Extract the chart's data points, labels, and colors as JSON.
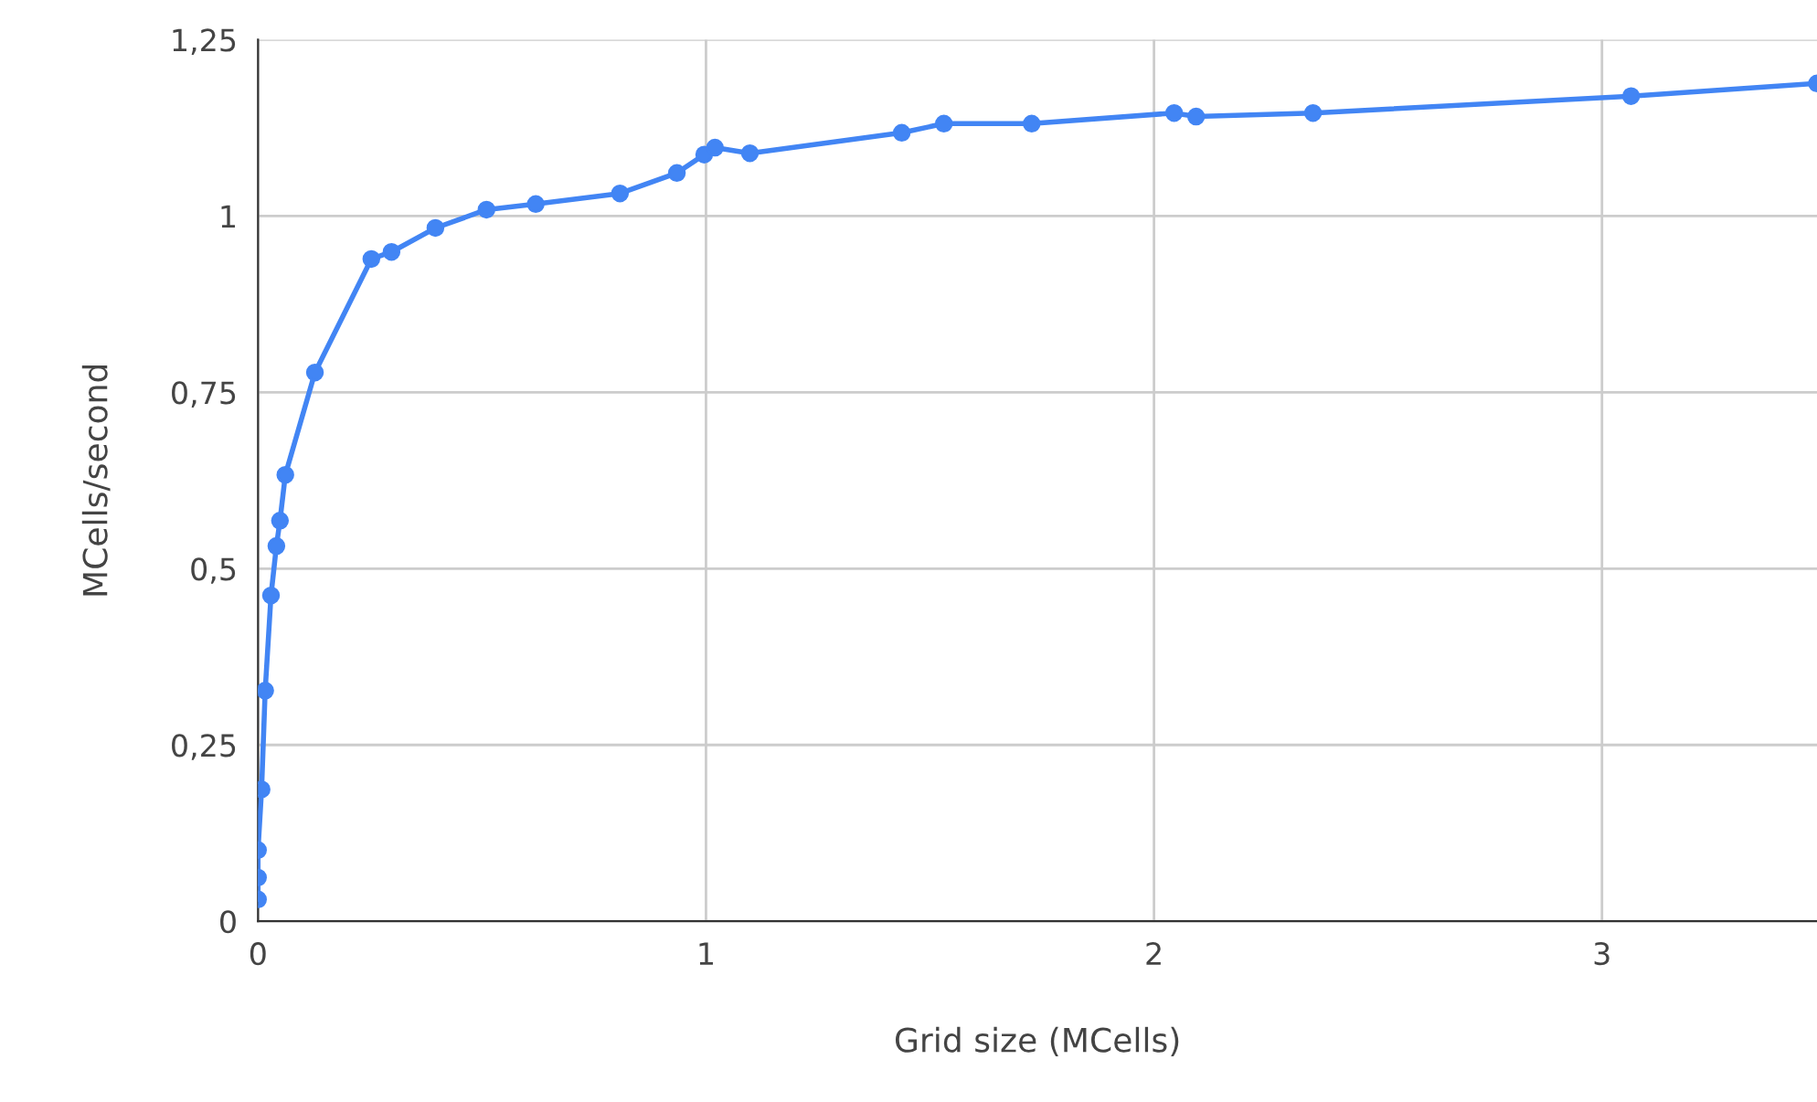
{
  "chart_data": {
    "type": "line",
    "xlabel": "Grid size (MCells)",
    "ylabel": "MCells/second",
    "x": [
      0,
      0,
      0,
      0.008,
      0.016,
      0.029,
      0.041,
      0.049,
      0.061,
      0.127,
      0.253,
      0.298,
      0.396,
      0.51,
      0.62,
      0.808,
      0.935,
      0.996,
      1.02,
      1.098,
      1.437,
      1.531,
      1.727,
      2.045,
      2.094,
      2.355,
      3.065,
      3.48
    ],
    "series": [
      {
        "color": "#4285f4",
        "values": [
          0.031,
          0.062,
          0.101,
          0.187,
          0.327,
          0.462,
          0.532,
          0.568,
          0.633,
          0.778,
          0.939,
          0.949,
          0.983,
          1.009,
          1.017,
          1.032,
          1.061,
          1.087,
          1.097,
          1.089,
          1.118,
          1.131,
          1.131,
          1.146,
          1.141,
          1.146,
          1.17,
          1.188
        ]
      }
    ],
    "xlim": [
      0,
      3.48
    ],
    "ylim": [
      0,
      1.25
    ],
    "xticks": [
      0,
      1,
      2,
      3
    ],
    "yticks": [
      0,
      {
        "value": 0.25,
        "label": "0,25"
      },
      {
        "value": 0.5,
        "label": "0,5"
      },
      {
        "value": 0.75,
        "label": "0,75"
      },
      1,
      {
        "value": 1.25,
        "label": "1,25"
      }
    ],
    "grid": true,
    "marker": "circle",
    "line_style": "solid"
  }
}
